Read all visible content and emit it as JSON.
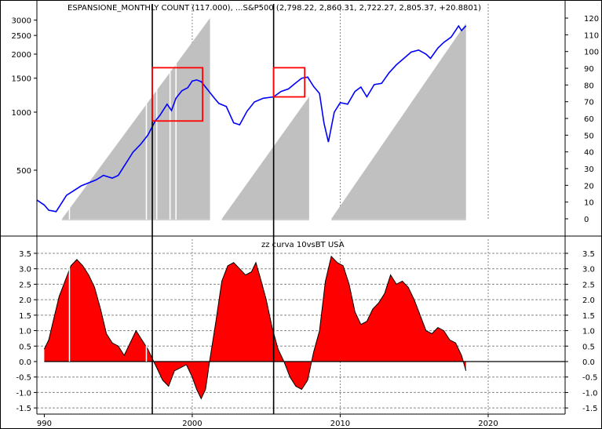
{
  "chart_data": [
    {
      "type": "line",
      "panel": "top",
      "title": "ESPANSIONE_MONTHLY COUNT (117.000), ...S&P500 (2,798.22, 2,860.31, 2,722.27, 2,805.37, +20.8801)",
      "left_axis": {
        "scale": "log",
        "ticks": [
          500,
          1000,
          1500,
          2000,
          2500,
          3000
        ]
      },
      "right_axis": {
        "scale": "linear",
        "range": [
          0,
          120
        ],
        "ticks": [
          0,
          10,
          20,
          30,
          40,
          50,
          60,
          70,
          80,
          90,
          100,
          110,
          120
        ]
      },
      "x_axis": {
        "ticks": [
          "990",
          "2000",
          "2010",
          "2020"
        ],
        "range_years": [
          1989.5,
          2025.2
        ]
      },
      "series": [
        {
          "name": "ESPANSIONE_MONTHLY COUNT",
          "style": "area",
          "color": "#c0c0c0",
          "axis": "right",
          "segments": [
            {
              "x": [
                1991.2,
                2001.2
              ],
              "y": [
                0,
                120
              ]
            },
            {
              "x": [
                2002.0,
                2007.9
              ],
              "y": [
                0,
                73
              ]
            },
            {
              "x": [
                2009.4,
                2018.5
              ],
              "y": [
                0,
                117
              ]
            }
          ],
          "gaps": [
            1991.7,
            1996.9,
            1997.6,
            1998.5,
            1998.9
          ]
        },
        {
          "name": "S&P500",
          "style": "line",
          "color": "#0000ff",
          "axis": "left",
          "x": [
            1989.5,
            1990.0,
            1990.3,
            1990.8,
            1991.5,
            1992.5,
            1993.5,
            1994.0,
            1994.6,
            1995.0,
            1995.5,
            1996.0,
            1996.5,
            1997.0,
            1997.5,
            1997.8,
            1998.3,
            1998.6,
            1998.9,
            1999.3,
            1999.7,
            2000.0,
            2000.3,
            2000.6,
            2001.0,
            2001.5,
            2001.8,
            2002.3,
            2002.8,
            2003.2,
            2003.7,
            2004.2,
            2004.8,
            2005.5,
            2006.0,
            2006.5,
            2007.0,
            2007.4,
            2007.8,
            2008.2,
            2008.6,
            2008.9,
            2009.2,
            2009.6,
            2010.0,
            2010.5,
            2011.0,
            2011.4,
            2011.8,
            2012.3,
            2012.8,
            2013.3,
            2013.8,
            2014.3,
            2014.8,
            2015.3,
            2015.8,
            2016.1,
            2016.6,
            2017.0,
            2017.5,
            2018.0,
            2018.2,
            2018.5
          ],
          "values": [
            350,
            330,
            310,
            305,
            370,
            415,
            445,
            470,
            455,
            470,
            540,
            620,
            680,
            760,
            900,
            960,
            1100,
            1020,
            1180,
            1290,
            1340,
            1450,
            1470,
            1440,
            1320,
            1180,
            1110,
            1070,
            880,
            860,
            1010,
            1130,
            1180,
            1200,
            1280,
            1320,
            1420,
            1500,
            1520,
            1360,
            1250,
            880,
            700,
            1000,
            1120,
            1100,
            1280,
            1350,
            1200,
            1390,
            1410,
            1600,
            1760,
            1900,
            2050,
            2100,
            2000,
            1900,
            2150,
            2300,
            2450,
            2800,
            2650,
            2805
          ]
        }
      ]
    },
    {
      "type": "area",
      "panel": "bottom",
      "title": "zz curva 10vsBT USA",
      "y_axis": {
        "range": [
          -1.5,
          3.5
        ],
        "ticks": [
          -1.5,
          -1.0,
          -0.5,
          0.0,
          0.5,
          1.0,
          1.5,
          2.0,
          2.5,
          3.0,
          3.5
        ]
      },
      "series": [
        {
          "name": "zz curva 10vsBT USA",
          "fill": "#ff0000",
          "line": "#000000",
          "x": [
            1990.0,
            1990.3,
            1990.6,
            1991.0,
            1991.4,
            1991.8,
            1992.2,
            1992.6,
            1993.0,
            1993.4,
            1993.8,
            1994.2,
            1994.6,
            1995.0,
            1995.4,
            1995.8,
            1996.2,
            1996.6,
            1997.0,
            1997.3,
            1997.6,
            1998.0,
            1998.4,
            1998.8,
            1999.2,
            1999.6,
            2000.0,
            2000.3,
            2000.6,
            2000.9,
            2001.2,
            2001.6,
            2002.0,
            2002.4,
            2002.8,
            2003.2,
            2003.6,
            2004.0,
            2004.3,
            2004.6,
            2005.0,
            2005.4,
            2005.8,
            2006.2,
            2006.6,
            2007.0,
            2007.4,
            2007.8,
            2008.2,
            2008.6,
            2009.0,
            2009.4,
            2009.8,
            2010.2,
            2010.6,
            2011.0,
            2011.4,
            2011.8,
            2012.2,
            2012.6,
            2013.0,
            2013.4,
            2013.8,
            2014.2,
            2014.6,
            2015.0,
            2015.4,
            2015.8,
            2016.2,
            2016.6,
            2017.0,
            2017.4,
            2017.8,
            2018.2,
            2018.5
          ],
          "values": [
            0.4,
            0.7,
            1.3,
            2.1,
            2.6,
            3.1,
            3.3,
            3.1,
            2.8,
            2.4,
            1.7,
            0.9,
            0.6,
            0.5,
            0.2,
            0.6,
            1.0,
            0.7,
            0.4,
            0.1,
            -0.2,
            -0.6,
            -0.8,
            -0.3,
            -0.2,
            -0.1,
            -0.5,
            -0.9,
            -1.2,
            -0.9,
            0.1,
            1.3,
            2.6,
            3.1,
            3.2,
            3.0,
            2.8,
            2.9,
            3.2,
            2.7,
            2.0,
            1.1,
            0.4,
            0.0,
            -0.5,
            -0.8,
            -0.9,
            -0.6,
            0.3,
            1.0,
            2.6,
            3.4,
            3.2,
            3.1,
            2.5,
            1.6,
            1.2,
            1.3,
            1.7,
            1.9,
            2.2,
            2.8,
            2.5,
            2.6,
            2.4,
            2.0,
            1.5,
            1.0,
            0.9,
            1.1,
            1.0,
            0.7,
            0.6,
            0.2,
            -0.3
          ]
        }
      ],
      "zero_line_extends_to": 2025.2
    }
  ],
  "markers": {
    "vertical_lines_years": [
      1997.3,
      2005.5
    ],
    "boxes": [
      {
        "x": [
          1997.3,
          2000.7
        ],
        "y": [
          900,
          1700
        ]
      },
      {
        "x": [
          2005.5,
          2007.6
        ],
        "y": [
          1200,
          1700
        ]
      }
    ]
  },
  "colors": {
    "background": "#ffffff",
    "grid": "#000000",
    "area": "#c0c0c0",
    "price": "#0000ff",
    "box": "#ff0000",
    "osc_fill": "#ff0000"
  }
}
